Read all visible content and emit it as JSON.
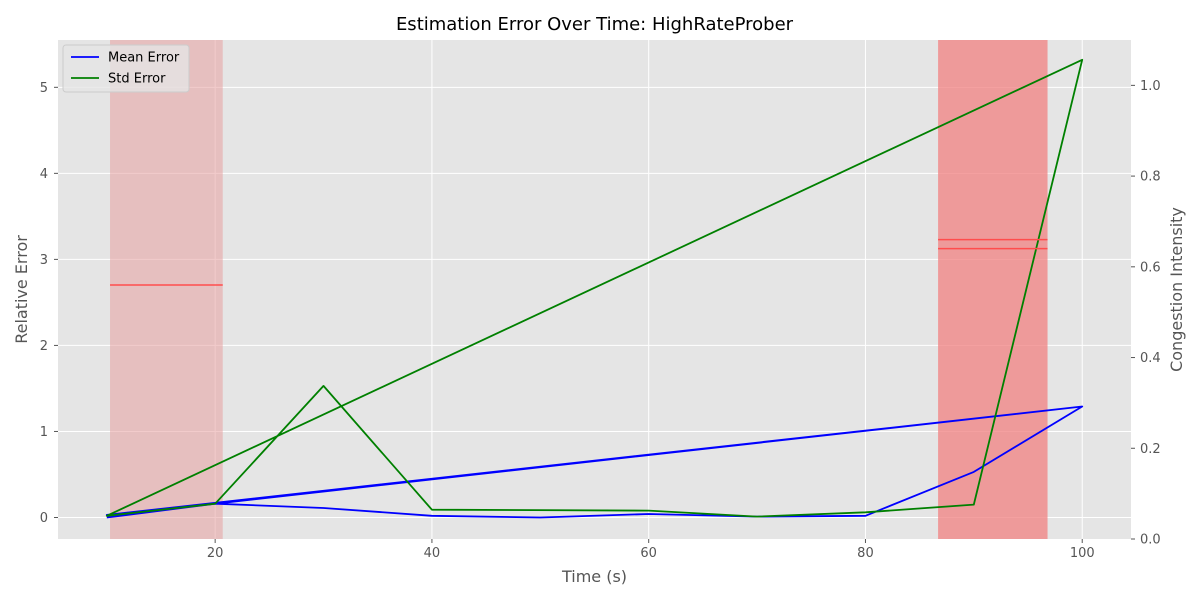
{
  "chart_data": {
    "type": "line",
    "title": "Estimation Error Over Time: HighRateProber",
    "xlabel": "Time (s)",
    "ylabel": "Relative Error",
    "y2label": "Congestion Intensity",
    "xlim": [
      5.5,
      104.5
    ],
    "ylim": [
      -0.25,
      5.55
    ],
    "y2lim": [
      0.0,
      1.1
    ],
    "xticks": [
      20,
      40,
      60,
      80,
      100
    ],
    "yticks": [
      0,
      1,
      2,
      3,
      4,
      5
    ],
    "y2ticks": [
      0.0,
      0.2,
      0.4,
      0.6,
      0.8,
      1.0
    ],
    "grid": true,
    "legend_position": "top-left",
    "background_color": "#e5e5e5",
    "series": [
      {
        "name": "Mean Error",
        "color": "#0000ff",
        "x": [
          10,
          20,
          30,
          40,
          50,
          60,
          70,
          80,
          90,
          100,
          10,
          20,
          100
        ],
        "y": [
          0.0,
          0.16,
          0.11,
          0.02,
          0.0,
          0.04,
          0.01,
          0.02,
          0.53,
          1.29,
          0.03,
          0.16,
          1.29
        ]
      },
      {
        "name": "Std Error",
        "color": "#008000",
        "x": [
          10,
          20,
          30,
          40,
          60,
          70,
          80,
          90,
          100,
          10,
          100
        ],
        "y": [
          0.02,
          0.16,
          1.53,
          0.09,
          0.08,
          0.01,
          0.06,
          0.15,
          5.32,
          0.02,
          5.32
        ]
      }
    ],
    "congestion_periods": [
      {
        "x_start": 10.3,
        "x_end": 20.7,
        "intensity": 0.56,
        "color": "#e8a0a0",
        "opacity": 0.55
      },
      {
        "x_start": 86.7,
        "x_end": 96.8,
        "intensity": 0.66,
        "color": "#f08080",
        "opacity": 0.75
      },
      {
        "x_start": 86.7,
        "x_end": 96.8,
        "intensity": 0.64,
        "color": "#f08080",
        "opacity": 0.0
      }
    ],
    "congestion_line_color": "#ff4d4d"
  }
}
